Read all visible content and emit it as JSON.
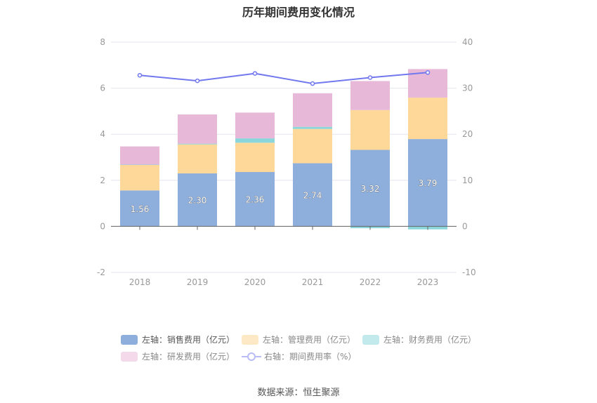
{
  "chart_data": {
    "type": "bar",
    "title": "历年期间费用变化情况",
    "categories": [
      "2018",
      "2019",
      "2020",
      "2021",
      "2022",
      "2023"
    ],
    "y_left": {
      "range": [
        -2,
        8
      ],
      "ticks": [
        "-2",
        "0",
        "2",
        "4",
        "6",
        "8"
      ]
    },
    "y_right": {
      "range": [
        -10,
        40
      ],
      "ticks": [
        "-10",
        "0",
        "10",
        "20",
        "30",
        "40"
      ]
    },
    "grid": true,
    "legend_position": "bottom",
    "series": [
      {
        "name": "左轴：销售费用（亿元）",
        "type": "bar",
        "axis": "left",
        "color": "#8eaedb",
        "values": [
          1.56,
          2.3,
          2.36,
          2.74,
          3.32,
          3.79
        ],
        "labels": [
          "1.56",
          "2.30",
          "2.36",
          "2.74",
          "3.32",
          "3.79"
        ]
      },
      {
        "name": "左轴：管理费用（亿元）",
        "type": "bar",
        "axis": "left",
        "color": "#fed899",
        "values": [
          1.11,
          1.26,
          1.27,
          1.49,
          1.73,
          1.8
        ]
      },
      {
        "name": "左轴：财务费用（亿元）",
        "type": "bar",
        "axis": "left",
        "color": "#8ad6da",
        "values": [
          0.01,
          0.03,
          0.19,
          0.09,
          -0.08,
          -0.13
        ]
      },
      {
        "name": "左轴：研发费用（亿元）",
        "type": "bar",
        "axis": "left",
        "color": "#e7b8d8",
        "values": [
          0.79,
          1.27,
          1.12,
          1.46,
          1.26,
          1.24
        ]
      },
      {
        "name": "右轴：期间费用率（%）",
        "type": "line",
        "axis": "right",
        "color": "#7278ee",
        "values": [
          32.8,
          31.6,
          33.2,
          31.0,
          32.3,
          33.4
        ]
      }
    ]
  },
  "source": "数据来源：恒生聚源"
}
